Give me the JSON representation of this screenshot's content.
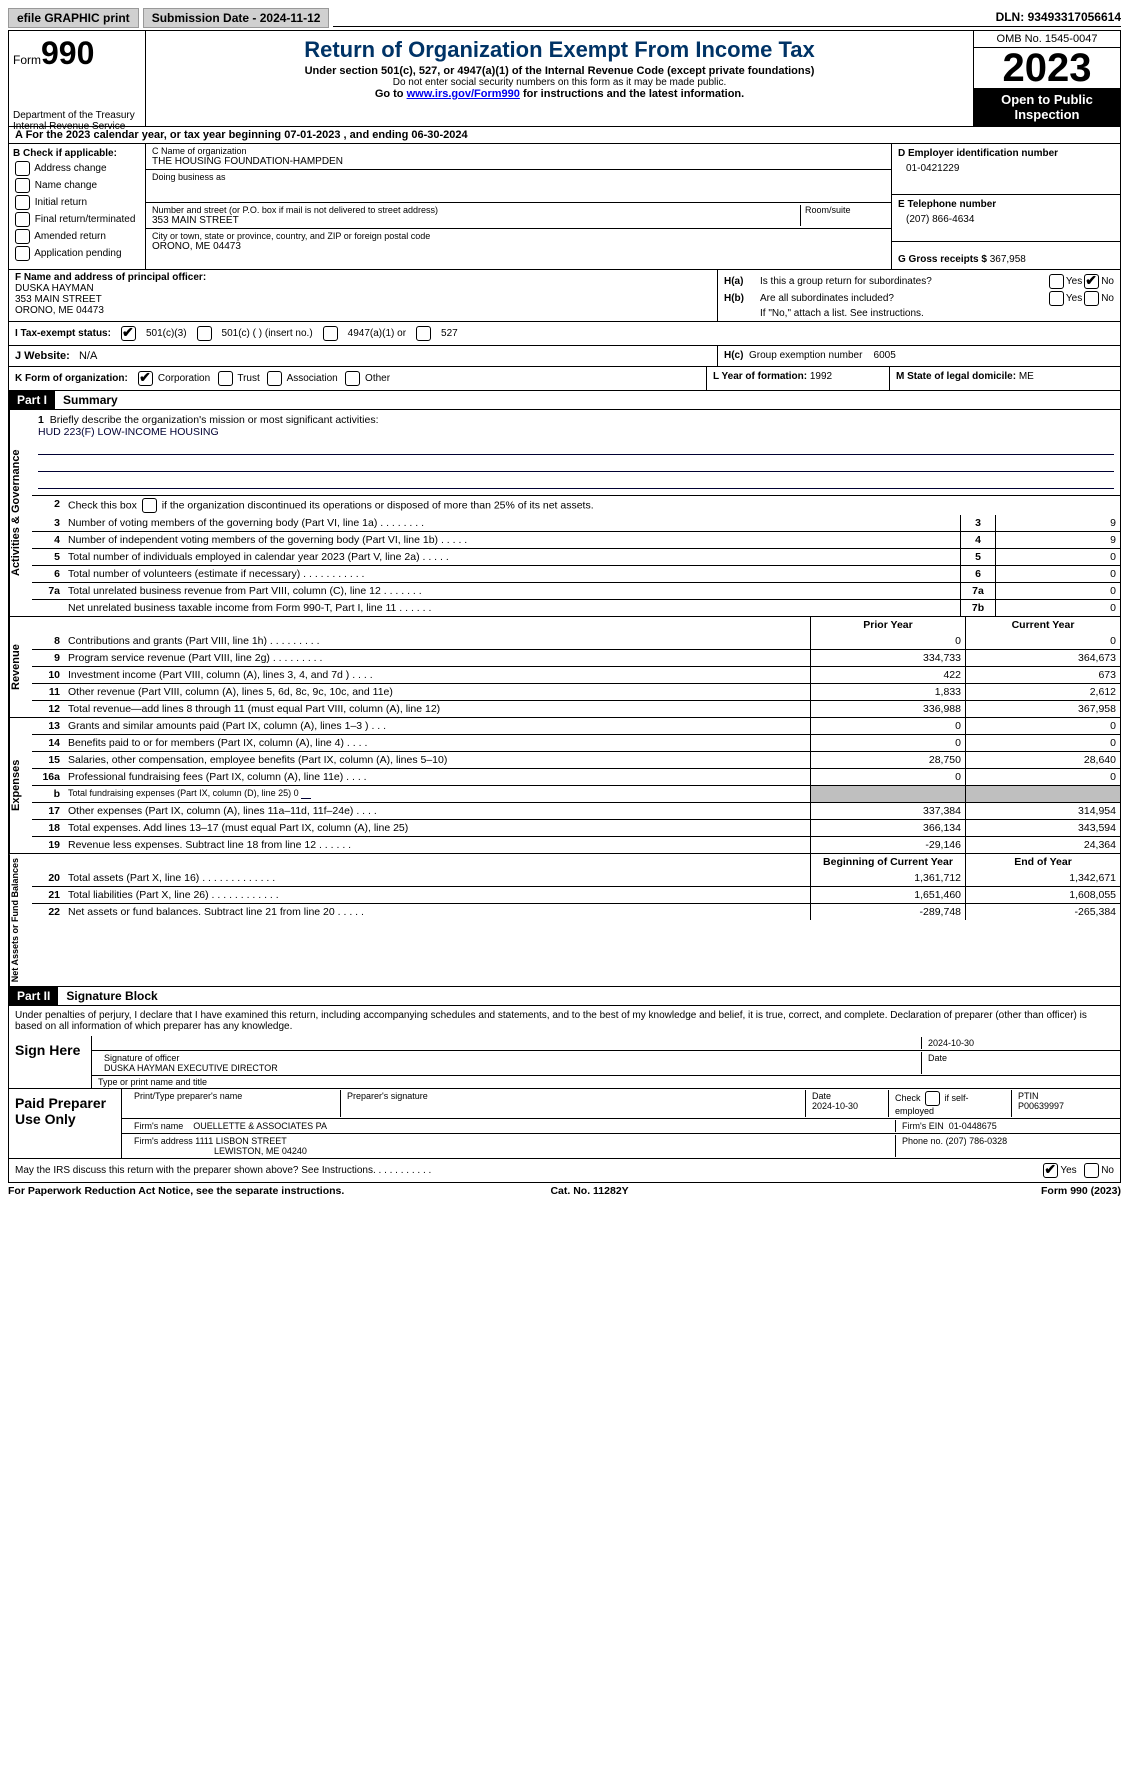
{
  "topbar": {
    "efile": "efile GRAPHIC print",
    "subdate_lbl": "Submission Date - ",
    "subdate": "2024-11-12",
    "dln_lbl": "DLN: ",
    "dln": "93493317056614"
  },
  "header": {
    "form": "Form",
    "num": "990",
    "title": "Return of Organization Exempt From Income Tax",
    "sub": "Under section 501(c), 527, or 4947(a)(1) of the Internal Revenue Code (except private foundations)",
    "ssn": "Do not enter social security numbers on this form as it may be made public.",
    "goto_pre": "Go to ",
    "goto_link": "www.irs.gov/Form990",
    "goto_post": " for instructions and the latest information.",
    "dept": "Department of the Treasury",
    "irs": "Internal Revenue Service",
    "omb": "OMB No. 1545-0047",
    "year": "2023",
    "inspect": "Open to Public Inspection"
  },
  "rowA": {
    "pre": "A For the 2023 calendar year, or tax year beginning ",
    "begin": "07-01-2023",
    "mid": " , and ending ",
    "end": "06-30-2024"
  },
  "colB": {
    "hdr": "B Check if applicable:",
    "items": [
      "Address change",
      "Name change",
      "Initial return",
      "Final return/terminated",
      "Amended return",
      "Application pending"
    ]
  },
  "boxC": {
    "lab": "C Name of organization",
    "name": "THE HOUSING FOUNDATION-HAMPDEN",
    "dba_lab": "Doing business as",
    "dba": "",
    "addr_lab": "Number and street (or P.O. box if mail is not delivered to street address)",
    "room_lab": "Room/suite",
    "addr": "353 MAIN STREET",
    "city_lab": "City or town, state or province, country, and ZIP or foreign postal code",
    "city": "ORONO, ME  04473"
  },
  "boxD": {
    "lab": "D Employer identification number",
    "val": "01-0421229"
  },
  "boxE": {
    "lab": "E Telephone number",
    "val": "(207) 866-4634"
  },
  "boxG": {
    "lab": "G Gross receipts $ ",
    "val": "367,958"
  },
  "boxF": {
    "lab": "F  Name and address of principal officer:",
    "name": "DUSKA HAYMAN",
    "addr1": "353 MAIN STREET",
    "addr2": "ORONO, ME  04473"
  },
  "boxH": {
    "a_lab": "H(a)",
    "a_txt": "Is this a group return for subordinates?",
    "b_lab": "H(b)",
    "b_txt": "Are all subordinates included?",
    "note": "If \"No,\" attach a list. See instructions.",
    "c_lab": "H(c)",
    "c_txt": "Group exemption number",
    "c_val": "6005",
    "yes": "Yes",
    "no": "No"
  },
  "rowI": {
    "lab": "I  Tax-exempt status:",
    "o1": "501(c)(3)",
    "o2": "501(c) (   ) (insert no.)",
    "o3": "4947(a)(1) or",
    "o4": "527"
  },
  "rowJ": {
    "lab": "J  Website:",
    "val": "N/A"
  },
  "rowK": {
    "lab": "K Form of organization:",
    "o1": "Corporation",
    "o2": "Trust",
    "o3": "Association",
    "o4": "Other"
  },
  "rowL": {
    "lab": "L Year of formation: ",
    "val": "1992"
  },
  "rowM": {
    "lab": "M State of legal domicile: ",
    "val": "ME"
  },
  "part1": {
    "bar": "Part I",
    "ttl": "Summary"
  },
  "sections": {
    "ag": "Activities & Governance",
    "rev": "Revenue",
    "exp": "Expenses",
    "nab": "Net Assets or Fund Balances"
  },
  "mission": {
    "n": "1",
    "lab": "Briefly describe the organization's mission or most significant activities:",
    "txt": "HUD 223(F) LOW-INCOME HOUSING"
  },
  "line2": {
    "n": "2",
    "txt": "Check this box        if the organization discontinued its operations or disposed of more than 25% of its net assets."
  },
  "govlines": [
    {
      "n": "3",
      "t": "Number of voting members of the governing body (Part VI, line 1a)    .    .    .    .    .    .    .    .",
      "bn": "3",
      "v": "9"
    },
    {
      "n": "4",
      "t": "Number of independent voting members of the governing body (Part VI, line 1b)   .    .    .    .    .",
      "bn": "4",
      "v": "9"
    },
    {
      "n": "5",
      "t": "Total number of individuals employed in calendar year 2023 (Part V, line 2a)    .    .    .    .    .",
      "bn": "5",
      "v": "0"
    },
    {
      "n": "6",
      "t": "Total number of volunteers (estimate if necessary)    .    .    .    .    .    .    .    .    .    .    .",
      "bn": "6",
      "v": "0"
    },
    {
      "n": "7a",
      "t": "Total unrelated business revenue from Part VIII, column (C), line 12    .    .    .    .    .    .    .",
      "bn": "7a",
      "v": "0"
    },
    {
      "n": "",
      "t": "Net unrelated business taxable income from Form 990-T, Part I, line 11    .    .    .    .    .    .",
      "bn": "7b",
      "v": "0"
    }
  ],
  "colhdr": {
    "prior": "Prior Year",
    "curr": "Current Year",
    "beg": "Beginning of Current Year",
    "end": "End of Year"
  },
  "rev": [
    {
      "n": "8",
      "t": "Contributions and grants (Part VIII, line 1h)    .    .    .    .    .    .    .    .    .",
      "p": "0",
      "c": "0"
    },
    {
      "n": "9",
      "t": "Program service revenue (Part VIII, line 2g)    .    .    .    .    .    .    .    .    .",
      "p": "334,733",
      "c": "364,673"
    },
    {
      "n": "10",
      "t": "Investment income (Part VIII, column (A), lines 3, 4, and 7d )    .    .    .    .",
      "p": "422",
      "c": "673"
    },
    {
      "n": "11",
      "t": "Other revenue (Part VIII, column (A), lines 5, 6d, 8c, 9c, 10c, and 11e)",
      "p": "1,833",
      "c": "2,612"
    },
    {
      "n": "12",
      "t": "Total revenue—add lines 8 through 11 (must equal Part VIII, column (A), line 12)",
      "p": "336,988",
      "c": "367,958"
    }
  ],
  "exp": [
    {
      "n": "13",
      "t": "Grants and similar amounts paid (Part IX, column (A), lines 1–3 )    .    .    .",
      "p": "0",
      "c": "0"
    },
    {
      "n": "14",
      "t": "Benefits paid to or for members (Part IX, column (A), line 4)    .    .    .    .",
      "p": "0",
      "c": "0"
    },
    {
      "n": "15",
      "t": "Salaries, other compensation, employee benefits (Part IX, column (A), lines 5–10)",
      "p": "28,750",
      "c": "28,640"
    },
    {
      "n": "16a",
      "t": "Professional fundraising fees (Part IX, column (A), line 11e)    .    .    .    .",
      "p": "0",
      "c": "0"
    },
    {
      "n": "b",
      "t": "Total fundraising expenses (Part IX, column (D), line 25) 0",
      "p": "",
      "c": "",
      "grey": true,
      "small": true
    },
    {
      "n": "17",
      "t": "Other expenses (Part IX, column (A), lines 11a–11d, 11f–24e)    .    .    .    .",
      "p": "337,384",
      "c": "314,954"
    },
    {
      "n": "18",
      "t": "Total expenses. Add lines 13–17 (must equal Part IX, column (A), line 25)",
      "p": "366,134",
      "c": "343,594"
    },
    {
      "n": "19",
      "t": "Revenue less expenses. Subtract line 18 from line 12    .    .    .    .    .    .",
      "p": "-29,146",
      "c": "24,364"
    }
  ],
  "nab": [
    {
      "n": "20",
      "t": "Total assets (Part X, line 16)    .    .    .    .    .    .    .    .    .    .    .    .    .",
      "p": "1,361,712",
      "c": "1,342,671"
    },
    {
      "n": "21",
      "t": "Total liabilities (Part X, line 26)    .    .    .    .    .    .    .    .    .    .    .    .",
      "p": "1,651,460",
      "c": "1,608,055"
    },
    {
      "n": "22",
      "t": "Net assets or fund balances. Subtract line 21 from line 20    .    .    .    .    .",
      "p": "-289,748",
      "c": "-265,384"
    }
  ],
  "part2": {
    "bar": "Part II",
    "ttl": "Signature Block"
  },
  "sigtxt": "Under penalties of perjury, I declare that I have examined this return, including accompanying schedules and statements, and to the best of my knowledge and belief, it is true, correct, and complete. Declaration of preparer (other than officer) is based on all information of which preparer has any knowledge.",
  "sign": {
    "here": "Sign Here",
    "date": "2024-10-30",
    "sig_lab": "Signature of officer",
    "date_lab": "Date",
    "name": "DUSKA HAYMAN  EXECUTIVE DIRECTOR",
    "name_lab": "Type or print name and title"
  },
  "paid": {
    "ttl": "Paid Preparer Use Only",
    "h1": "Print/Type preparer's name",
    "h2": "Preparer's signature",
    "h3": "Date",
    "h4": "Check         if self-employed",
    "h5": "PTIN",
    "date": "2024-10-30",
    "ptin": "P00639997",
    "firm_lab": "Firm's name",
    "firm": "OUELLETTE & ASSOCIATES PA",
    "ein_lab": "Firm's EIN",
    "ein": "01-0448675",
    "addr_lab": "Firm's address",
    "addr1": "1111 LISBON STREET",
    "addr2": "LEWISTON, ME  04240",
    "phone_lab": "Phone no.",
    "phone": "(207) 786-0328"
  },
  "discuss": {
    "txt": "May the IRS discuss this return with the preparer shown above? See Instructions.    .    .    .    .    .    .    .    .    .    .",
    "yes": "Yes",
    "no": "No"
  },
  "footer": {
    "l": "For Paperwork Reduction Act Notice, see the separate instructions.",
    "m": "Cat. No. 11282Y",
    "r": "Form 990 (2023)"
  }
}
